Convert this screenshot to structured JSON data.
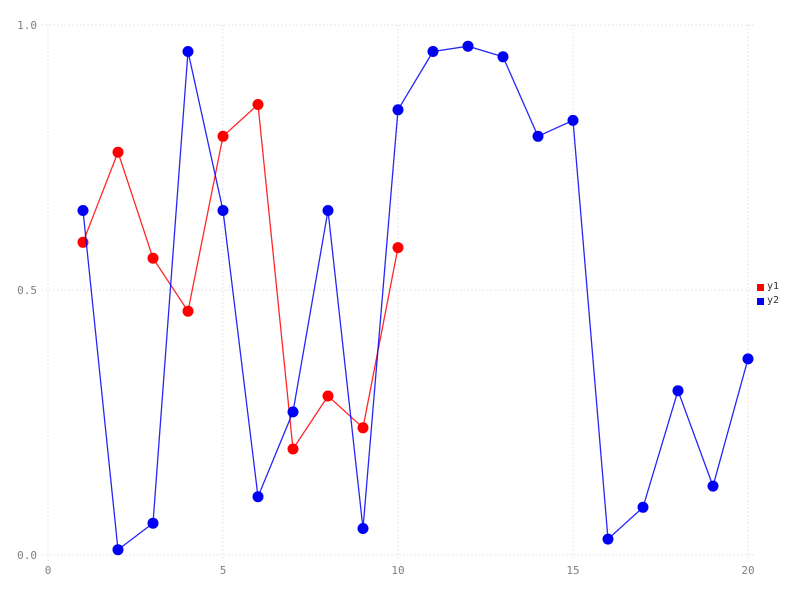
{
  "chart_data": {
    "type": "line",
    "title": "",
    "xlabel": "",
    "ylabel": "",
    "grid": true,
    "legend_position": "right-center",
    "background_color": "#ffffff",
    "grid_color": "#d9d9de",
    "tick_label_color": "#7f7f7f",
    "legend_text_color": "#303030",
    "xlim": [
      0,
      20.6
    ],
    "ylim": [
      0,
      1.04
    ],
    "x_ticks": [
      0,
      5,
      10,
      15,
      20
    ],
    "x_tick_labels": [
      "0",
      "5",
      "10",
      "15",
      "20"
    ],
    "y_ticks": [
      0.0,
      0.5,
      1.0
    ],
    "y_tick_labels": [
      "0.0",
      "0.5",
      "1.0"
    ],
    "series": [
      {
        "name": "y1",
        "color": "#ff0000",
        "x": [
          1,
          2,
          3,
          4,
          5,
          6,
          7,
          8,
          9,
          10
        ],
        "values": [
          0.59,
          0.76,
          0.56,
          0.46,
          0.79,
          0.85,
          0.2,
          0.3,
          0.24,
          0.58
        ]
      },
      {
        "name": "y2",
        "color": "#0000f5",
        "x": [
          1,
          2,
          3,
          4,
          5,
          6,
          7,
          8,
          9,
          10,
          11,
          12,
          13,
          14,
          15,
          16,
          17,
          18,
          19,
          20
        ],
        "values": [
          0.65,
          0.01,
          0.06,
          0.95,
          0.65,
          0.11,
          0.27,
          0.65,
          0.05,
          0.84,
          0.95,
          0.96,
          0.94,
          0.79,
          0.82,
          0.03,
          0.09,
          0.31,
          0.13,
          0.37
        ]
      }
    ],
    "legend_items": [
      {
        "label": "y1",
        "color": "#ff0000"
      },
      {
        "label": "y2",
        "color": "#0000f5"
      }
    ]
  }
}
